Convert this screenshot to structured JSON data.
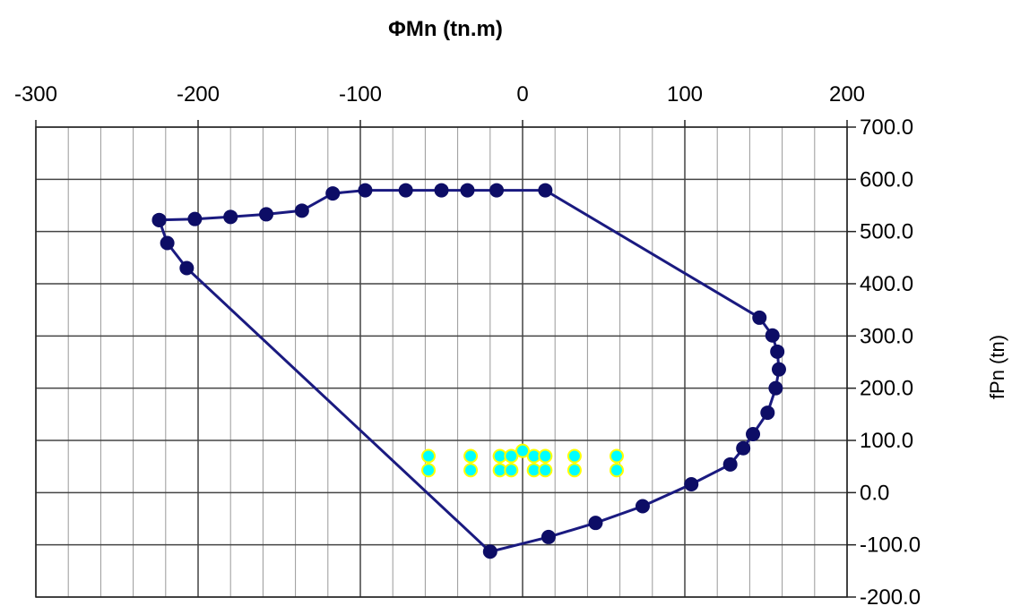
{
  "chart_data": {
    "type": "scatter",
    "title": "ΦMn (tn.m)",
    "xlabel": "ΦMn (tn.m)",
    "ylabel": "fPn (tn)",
    "xlim": [
      -300,
      200
    ],
    "ylim": [
      -200,
      700
    ],
    "x_ticks": [
      -300,
      -200,
      -100,
      0,
      100,
      200
    ],
    "y_ticks": [
      700,
      600,
      500,
      400,
      300,
      200,
      100,
      0,
      -100,
      -200
    ],
    "x_tick_labels": [
      "-300",
      "-200",
      "-100",
      "0",
      "100",
      "200"
    ],
    "y_tick_labels": [
      "700.0",
      "600.0",
      "500.0",
      "400.0",
      "300.0",
      "200.0",
      "100.0",
      "0.0",
      "-100.0",
      "-200.0"
    ],
    "grid": true,
    "x_axis_position": "top",
    "y_axis_position": "right",
    "series": [
      {
        "color": "#1a1a80",
        "marker_color": "#0d0d66",
        "line": true,
        "points": [
          [
            -224,
            522
          ],
          [
            -202,
            524
          ],
          [
            -180,
            528
          ],
          [
            -158,
            533
          ],
          [
            -136,
            540
          ],
          [
            -117,
            573
          ],
          [
            -97,
            579
          ],
          [
            -72,
            579
          ],
          [
            -50,
            579
          ],
          [
            -34,
            579
          ],
          [
            -16,
            579
          ],
          [
            14,
            579
          ],
          [
            146,
            335
          ],
          [
            154,
            301
          ],
          [
            157,
            270
          ],
          [
            158,
            236
          ],
          [
            156,
            200
          ],
          [
            151,
            153
          ],
          [
            142,
            112
          ],
          [
            136,
            85
          ],
          [
            128,
            54
          ],
          [
            104,
            16
          ],
          [
            74,
            -26
          ],
          [
            45,
            -58
          ],
          [
            16,
            -85
          ],
          [
            -20,
            -113
          ],
          [
            -207,
            430
          ],
          [
            -219,
            478
          ],
          [
            -224,
            522
          ]
        ]
      },
      {
        "color": "#00ffff",
        "marker_edge": "#ffff00",
        "line": false,
        "points": [
          [
            -58,
            70
          ],
          [
            -58,
            43
          ],
          [
            -32,
            70
          ],
          [
            -32,
            43
          ],
          [
            -14,
            70
          ],
          [
            -14,
            43
          ],
          [
            -7,
            70
          ],
          [
            -7,
            43
          ],
          [
            0,
            80
          ],
          [
            7,
            70
          ],
          [
            7,
            43
          ],
          [
            14,
            70
          ],
          [
            14,
            43
          ],
          [
            32,
            70
          ],
          [
            32,
            43
          ],
          [
            58,
            70
          ],
          [
            58,
            43
          ]
        ]
      }
    ]
  }
}
